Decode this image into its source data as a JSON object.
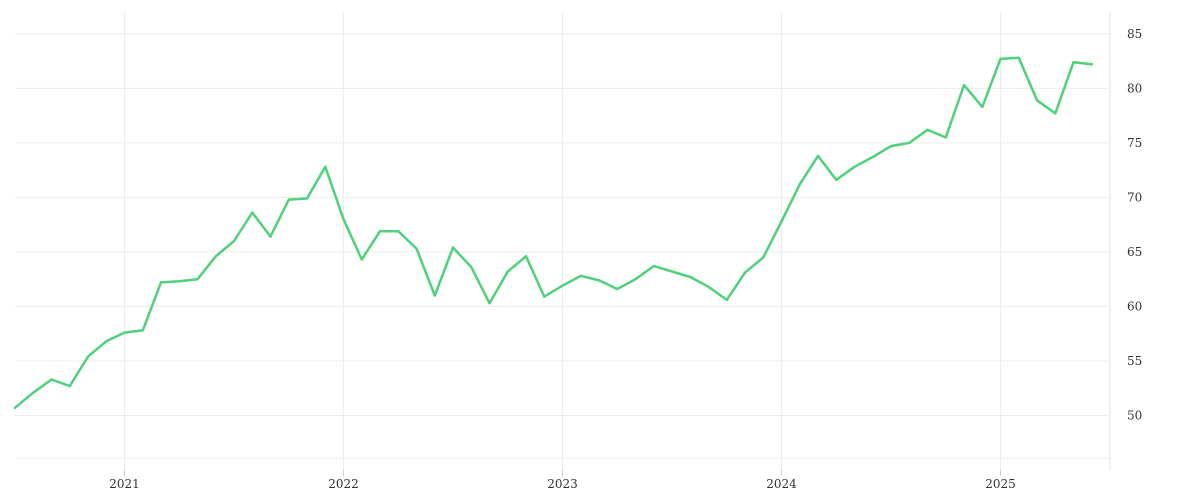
{
  "chart_data": {
    "type": "line",
    "title": "",
    "xlabel": "",
    "ylabel": "",
    "x_ticks": [
      "2021",
      "2022",
      "2023",
      "2024",
      "2025"
    ],
    "y_ticks": [
      "50",
      "55",
      "60",
      "65",
      "70",
      "75",
      "80",
      "85"
    ],
    "xlim": [
      "2020-07",
      "2025-07"
    ],
    "ylim": [
      45,
      87
    ],
    "y_axis_position": "right",
    "grid": true,
    "legend": "none",
    "colors": {
      "line": "#4fd17a",
      "grid": "#ececec",
      "text": "#333333"
    },
    "series": [
      {
        "x": [
          "2020-07",
          "2020-08",
          "2020-09",
          "2020-10",
          "2020-11",
          "2020-12",
          "2021-01",
          "2021-02",
          "2021-03",
          "2021-04",
          "2021-05",
          "2021-06",
          "2021-07",
          "2021-08",
          "2021-09",
          "2021-10",
          "2021-11",
          "2021-12",
          "2022-01",
          "2022-02",
          "2022-03",
          "2022-04",
          "2022-05",
          "2022-06",
          "2022-07",
          "2022-08",
          "2022-09",
          "2022-10",
          "2022-11",
          "2022-12",
          "2023-01",
          "2023-02",
          "2023-03",
          "2023-04",
          "2023-05",
          "2023-06",
          "2023-07",
          "2023-08",
          "2023-09",
          "2023-10",
          "2023-11",
          "2023-12",
          "2024-01",
          "2024-02",
          "2024-03",
          "2024-04",
          "2024-05",
          "2024-06",
          "2024-07",
          "2024-08",
          "2024-09",
          "2024-10",
          "2024-11",
          "2024-12",
          "2025-01",
          "2025-02",
          "2025-03",
          "2025-04",
          "2025-05",
          "2025-06"
        ],
        "values": [
          50.7,
          52.1,
          53.3,
          52.7,
          55.4,
          56.8,
          57.6,
          57.8,
          62.2,
          62.3,
          62.5,
          64.6,
          66.0,
          68.6,
          66.4,
          69.8,
          69.9,
          72.8,
          68.0,
          64.3,
          66.9,
          66.9,
          65.3,
          61.0,
          65.4,
          63.6,
          60.3,
          63.2,
          64.6,
          60.9,
          61.9,
          62.8,
          62.4,
          61.6,
          62.5,
          63.7,
          63.2,
          62.7,
          61.8,
          60.6,
          63.1,
          64.5,
          67.8,
          71.2,
          73.8,
          71.6,
          72.8,
          73.7,
          74.7,
          75.0,
          76.2,
          75.5,
          80.3,
          78.3,
          82.7,
          82.8,
          78.9,
          77.7,
          82.4,
          82.2
        ]
      }
    ]
  }
}
